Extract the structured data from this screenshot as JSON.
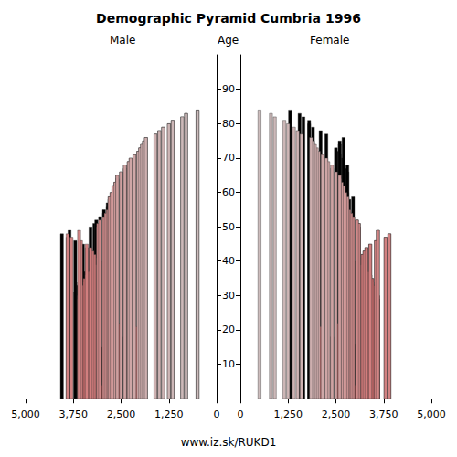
{
  "chart_data": {
    "type": "bar",
    "orientation": "horizontal",
    "title": "Demographic Pyramid Cumbria 1996",
    "ylabel": "Age",
    "footer": "www.iz.sk/RUKD1",
    "grid": false,
    "y": [
      0,
      1,
      2,
      3,
      4,
      5,
      6,
      7,
      8,
      9,
      10,
      11,
      12,
      13,
      14,
      15,
      16,
      17,
      18,
      19,
      20,
      21,
      22,
      23,
      24,
      25,
      26,
      27,
      28,
      29,
      30,
      31,
      32,
      33,
      34,
      35,
      36,
      37,
      38,
      39,
      40,
      41,
      42,
      43,
      44,
      45,
      46,
      47,
      48,
      49,
      50,
      51,
      52,
      53,
      54,
      55,
      56,
      57,
      58,
      59,
      60,
      61,
      62,
      63,
      64,
      65,
      66,
      67,
      68,
      69,
      70,
      71,
      72,
      73,
      74,
      75,
      76,
      77,
      78,
      79,
      80,
      81,
      82,
      83,
      84
    ],
    "series": [
      {
        "name": "Male",
        "values": [
          2750,
          2850,
          2950,
          3100,
          3150,
          3050,
          3100,
          3000,
          3000,
          3050,
          3050,
          3000,
          3050,
          3050,
          2950,
          3000,
          2850,
          2650,
          2400,
          2000,
          2050,
          2700,
          2900,
          3200,
          3350,
          3400,
          3400,
          3450,
          3550,
          3600,
          3600,
          3700,
          3650,
          3650,
          3600,
          3550,
          3500,
          3450,
          3300,
          3200,
          3150,
          3200,
          3250,
          3300,
          3400,
          3500,
          3700,
          3900,
          4050,
          3850,
          3300,
          3200,
          3150,
          3050,
          2950,
          2950,
          2850,
          2850,
          2800,
          2800,
          2750,
          2700,
          2700,
          2650,
          2600,
          2600,
          2500,
          2400,
          2400,
          2300,
          2250,
          2150,
          2050,
          2000,
          1950,
          1900,
          1850,
          1600,
          1500,
          1400,
          1250,
          1150,
          900,
          800,
          500
        ]
      },
      {
        "name": "Female",
        "values": [
          2500,
          2650,
          2750,
          2900,
          3000,
          2950,
          2850,
          2850,
          2850,
          2850,
          2850,
          2850,
          2850,
          2850,
          2850,
          2850,
          3000,
          2900,
          2600,
          2050,
          1900,
          2100,
          2550,
          3100,
          3400,
          3450,
          3400,
          3500,
          3550,
          3600,
          3600,
          3550,
          3550,
          3500,
          3450,
          3450,
          3400,
          3350,
          3250,
          3150,
          3050,
          3100,
          3200,
          3250,
          3300,
          3400,
          3550,
          3800,
          3900,
          3600,
          3100,
          3100,
          3050,
          2950,
          2900,
          2850,
          2800,
          2800,
          2850,
          2950,
          2800,
          2750,
          2750,
          2750,
          2700,
          2750,
          2800,
          2750,
          2800,
          2700,
          2650,
          2600,
          2550,
          2500,
          2600,
          2600,
          2700,
          2250,
          2100,
          1900,
          1800,
          1800,
          1650,
          1550,
          1300
        ]
      }
    ],
    "xlim": [
      0,
      5000
    ],
    "xticks": [
      0,
      1250,
      2500,
      3750,
      5000
    ],
    "ylim": [
      -1,
      100
    ],
    "yticks": [
      10,
      20,
      30,
      40,
      50,
      60,
      70,
      80,
      90
    ]
  }
}
